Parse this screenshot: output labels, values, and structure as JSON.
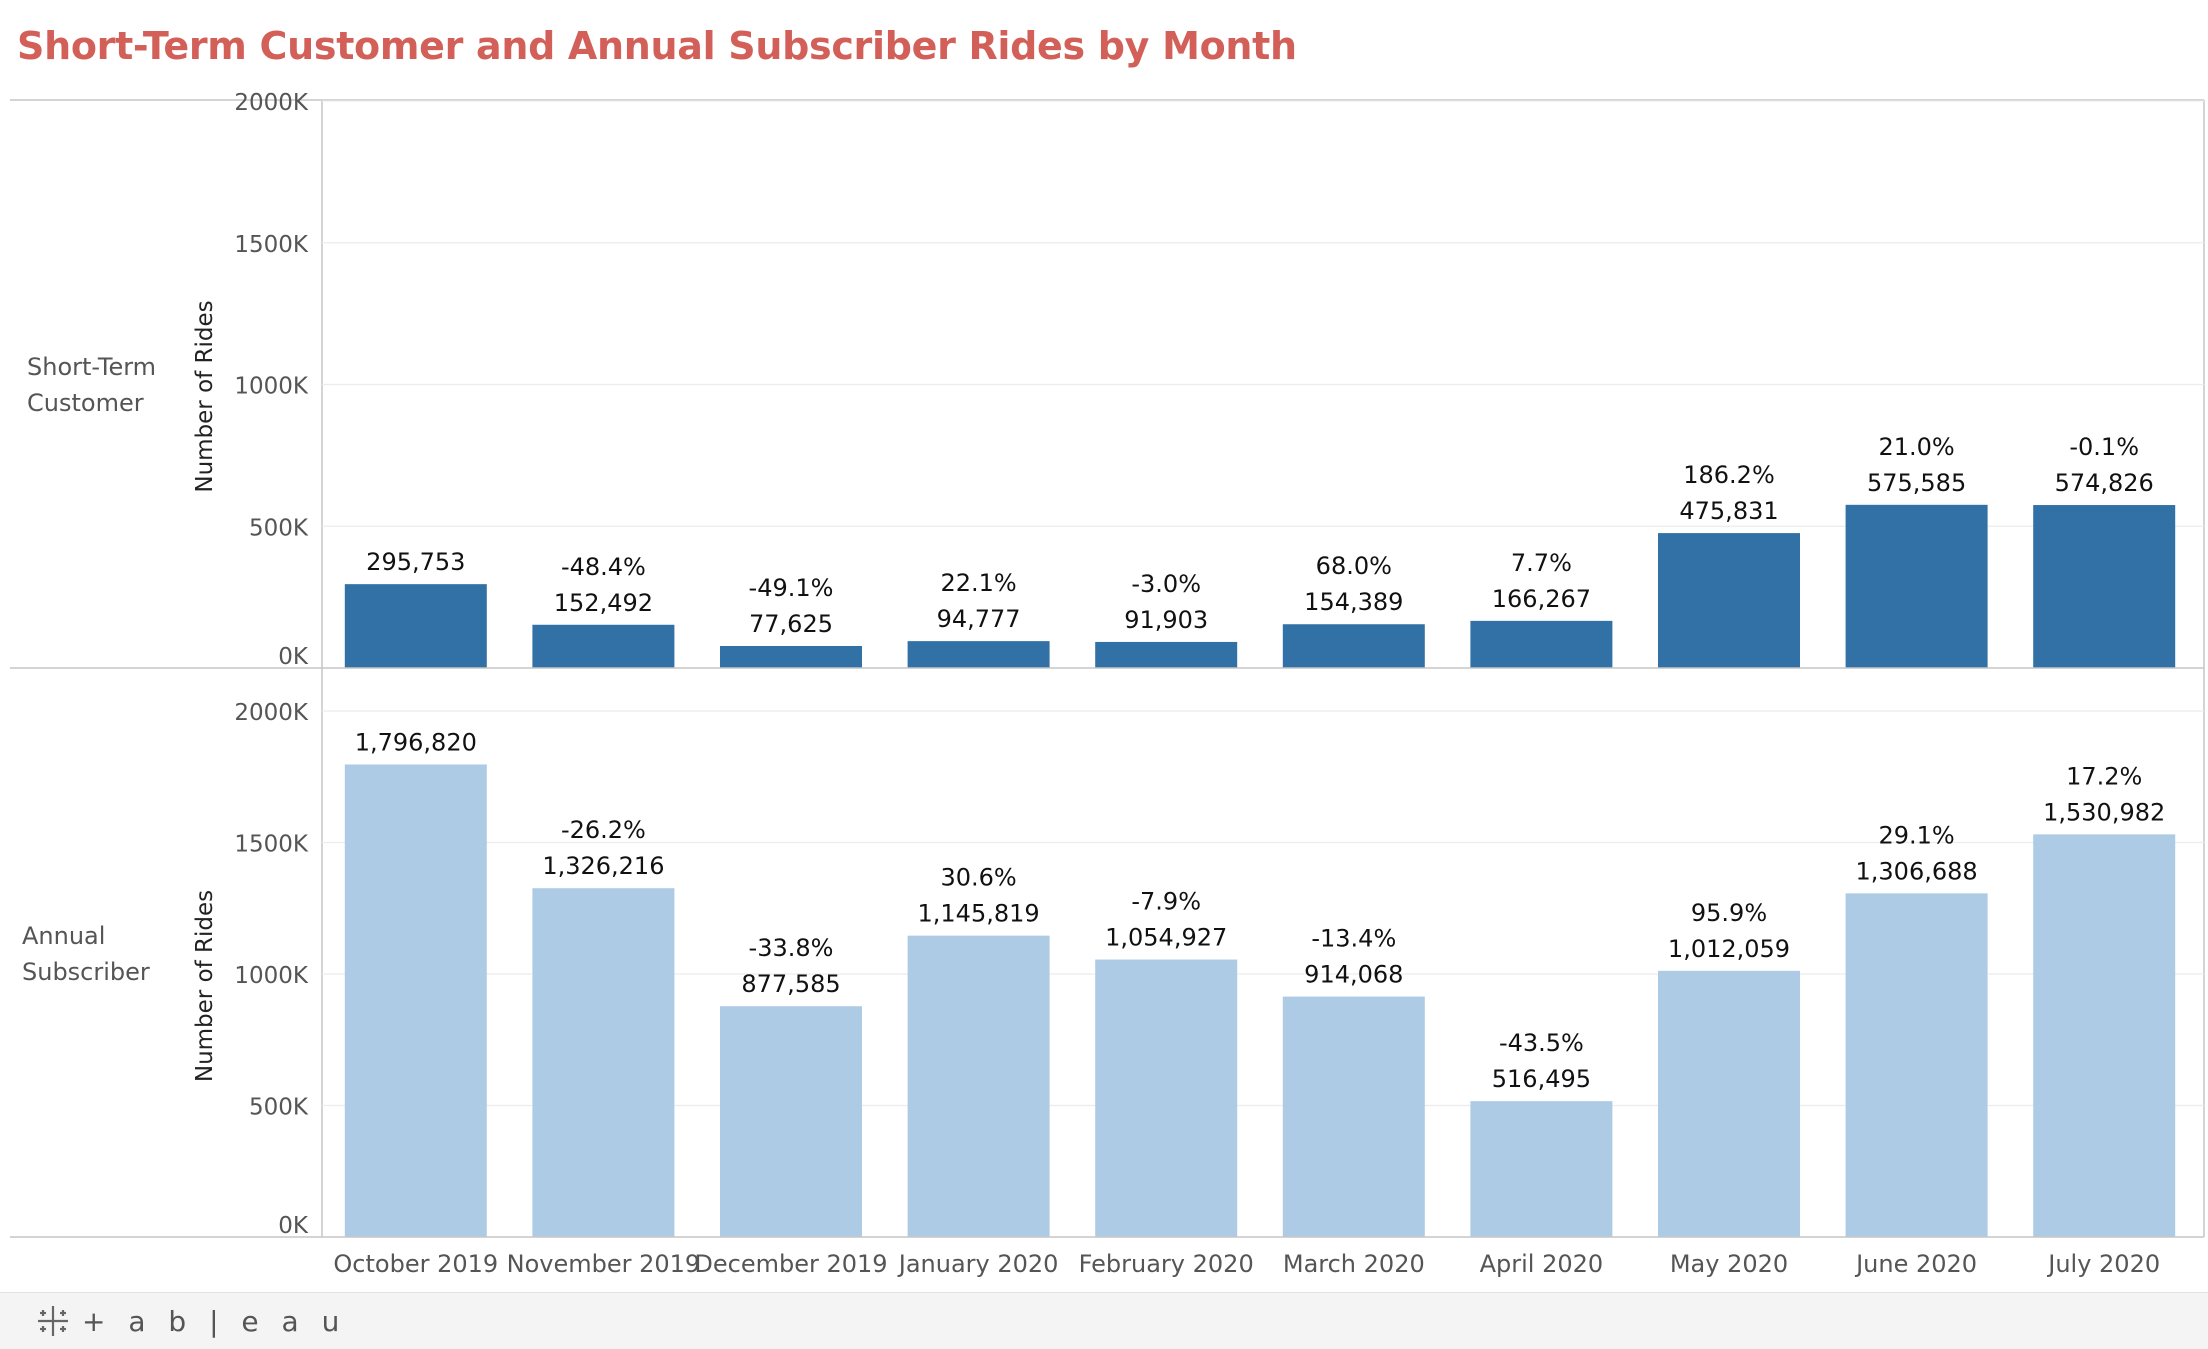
{
  "title": "Short-Term Customer and Annual Subscriber Rides by Month",
  "footer": {
    "brand": "+ a b | e a u"
  },
  "colors": {
    "title": "#d35f59",
    "short_term_bar": "#3271a6",
    "annual_bar": "#aecbe6",
    "grid": "#ececec",
    "axis": "#c6c6c6",
    "text": "#111111",
    "muted": "#555555"
  },
  "chart_data": {
    "type": "bar",
    "categories": [
      "October 2019",
      "November 2019",
      "December 2019",
      "January 2020",
      "February 2020",
      "March 2020",
      "April 2020",
      "May 2020",
      "June 2020",
      "July 2020"
    ],
    "ylabel": "Number of Rides",
    "ylim": [
      0,
      2000000
    ],
    "yticks": [
      0,
      500000,
      1000000,
      1500000,
      2000000
    ],
    "ytick_labels": [
      "0K",
      "500K",
      "1000K",
      "1500K",
      "2000K"
    ],
    "grid": true,
    "series": [
      {
        "name": "Short-Term Customer",
        "label_lines": [
          "Short-Term",
          "Customer"
        ],
        "color": "#3271a6",
        "values": [
          295753,
          152492,
          77625,
          94777,
          91903,
          154389,
          166267,
          475831,
          575585,
          574826
        ],
        "value_labels": [
          "295,753",
          "152,492",
          "77,625",
          "94,777",
          "91,903",
          "154,389",
          "166,267",
          "475,831",
          "575,585",
          "574,826"
        ],
        "pct_change": [
          "",
          "-48.4%",
          "-49.1%",
          "22.1%",
          "-3.0%",
          "68.0%",
          "7.7%",
          "186.2%",
          "21.0%",
          "-0.1%"
        ]
      },
      {
        "name": "Annual Subscriber",
        "label_lines": [
          "Annual",
          "Subscriber"
        ],
        "color": "#aecbe6",
        "values": [
          1796820,
          1326216,
          877585,
          1145819,
          1054927,
          914068,
          516495,
          1012059,
          1306688,
          1530982
        ],
        "value_labels": [
          "1,796,820",
          "1,326,216",
          "877,585",
          "1,145,819",
          "1,054,927",
          "914,068",
          "516,495",
          "1,012,059",
          "1,306,688",
          "1,530,982"
        ],
        "pct_change": [
          "",
          "-26.2%",
          "-33.8%",
          "30.6%",
          "-7.9%",
          "-13.4%",
          "-43.5%",
          "95.9%",
          "29.1%",
          "17.2%"
        ]
      }
    ]
  }
}
